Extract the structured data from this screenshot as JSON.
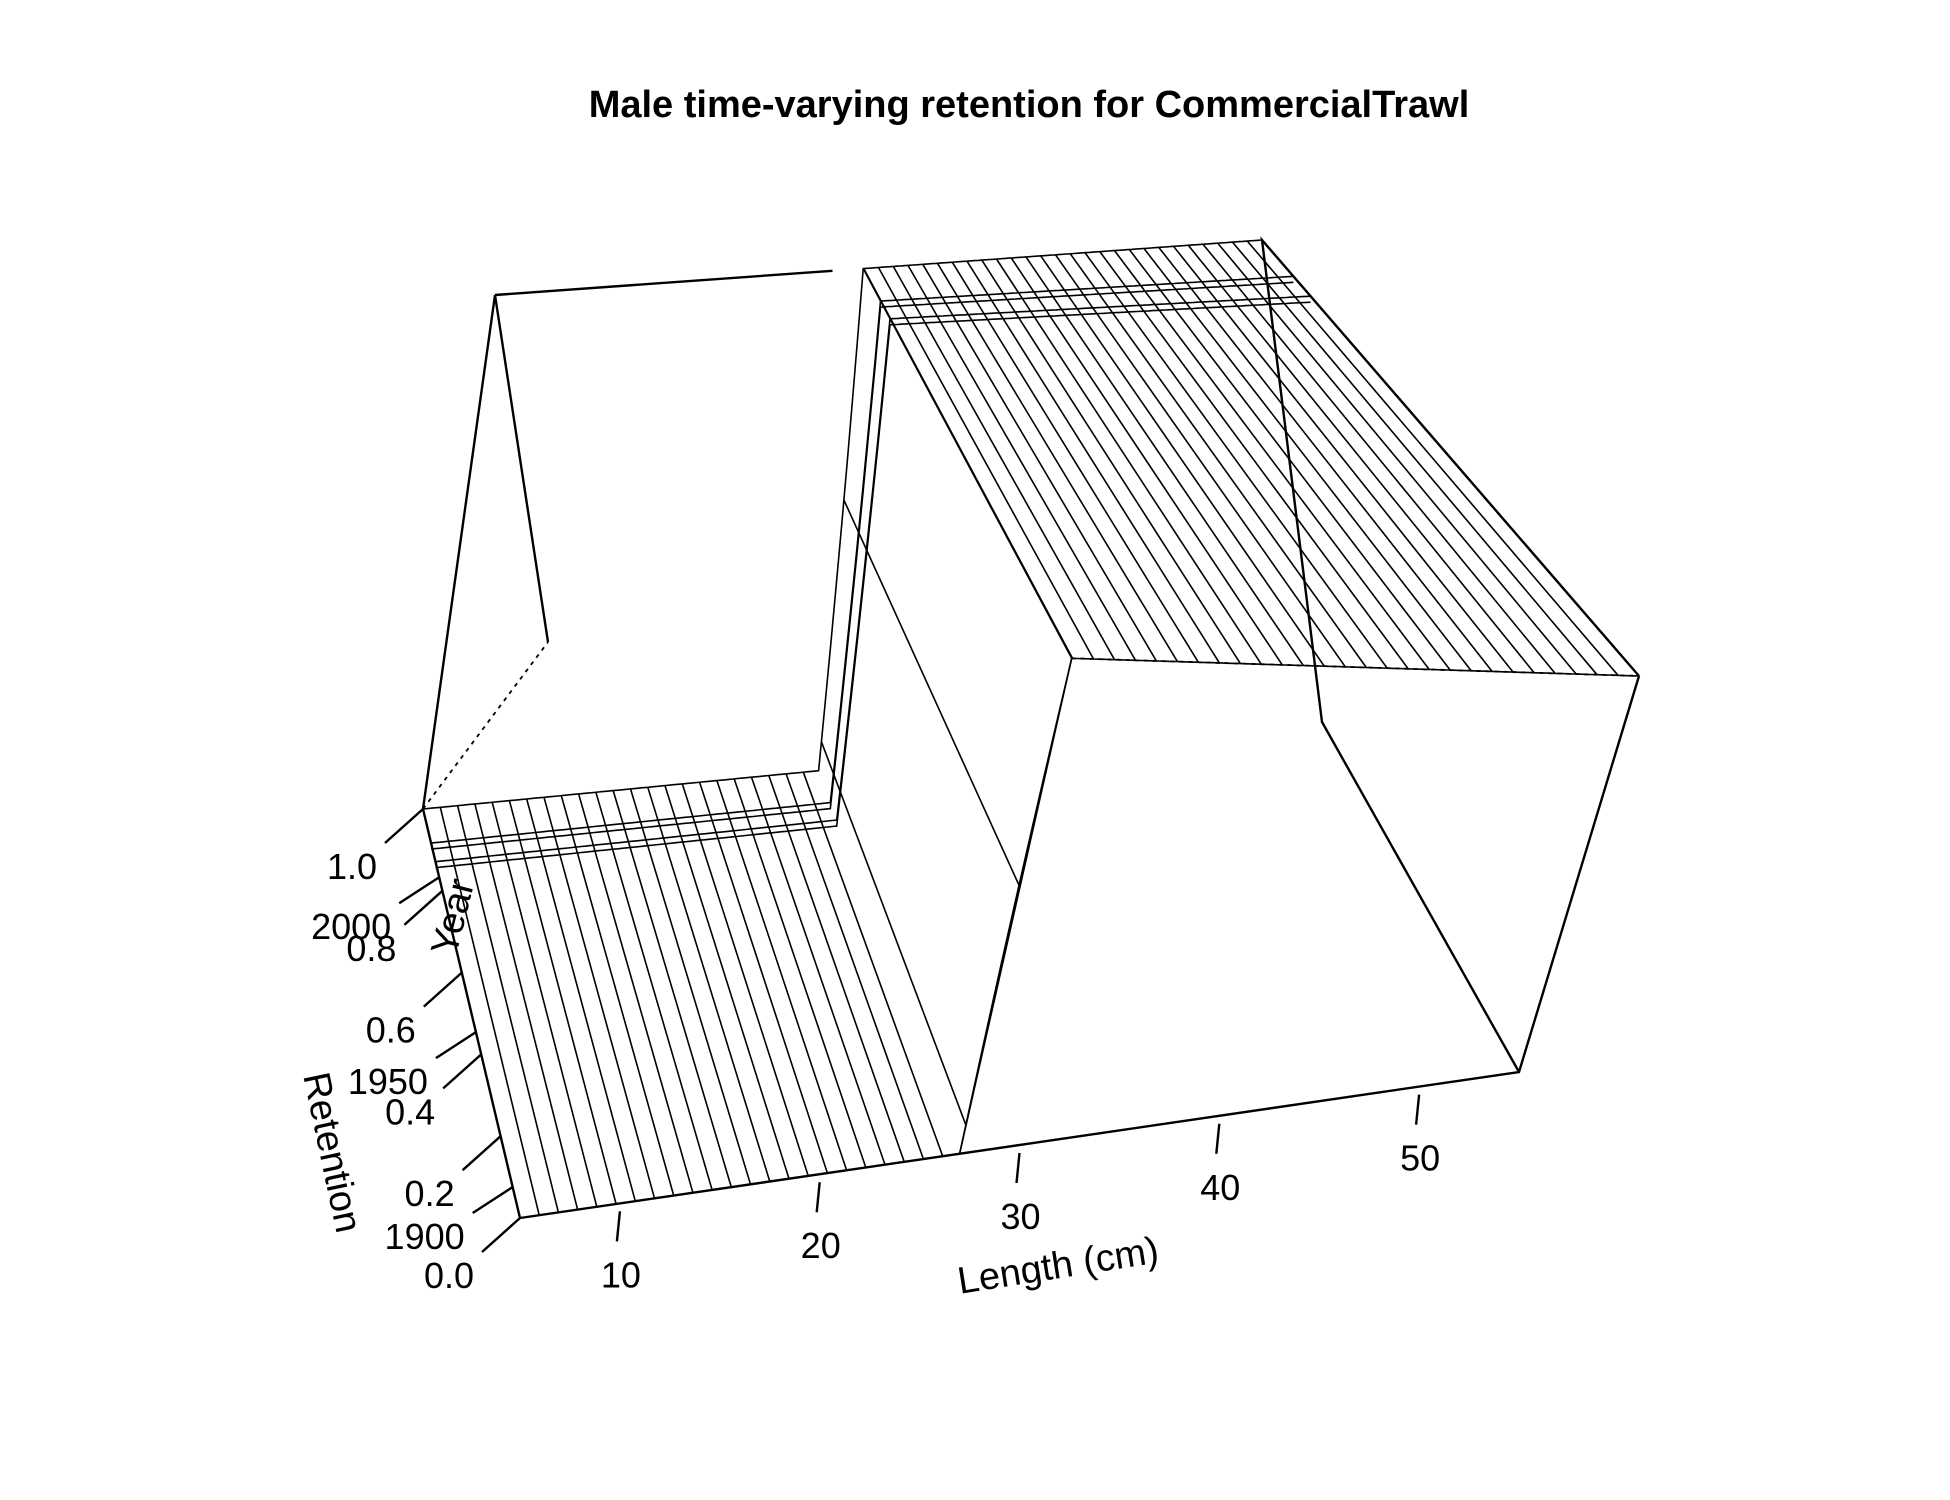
{
  "chart_data": {
    "type": "surface",
    "title": "Male time-varying retention for CommercialTrawl",
    "xlabel": "Length (cm)",
    "ylabel": "Year",
    "zlabel": "Retention",
    "x_ticks": [
      "10",
      "20",
      "30",
      "40",
      "50"
    ],
    "y_ticks": [
      "1900",
      "1950",
      "2000"
    ],
    "z_ticks": [
      "0.0",
      "0.2",
      "0.4",
      "0.6",
      "0.8",
      "1.0"
    ],
    "xlim": [
      5,
      55
    ],
    "ylim": [
      1890,
      2022
    ],
    "zlim": [
      0,
      1
    ],
    "retention_by_length": [
      {
        "length": 5,
        "retention": 0
      },
      {
        "length": 27,
        "retention": 0
      },
      {
        "length": 29,
        "retention": 1
      },
      {
        "length": 55,
        "retention": 1
      }
    ],
    "change_years": [
      2005,
      2011
    ]
  }
}
